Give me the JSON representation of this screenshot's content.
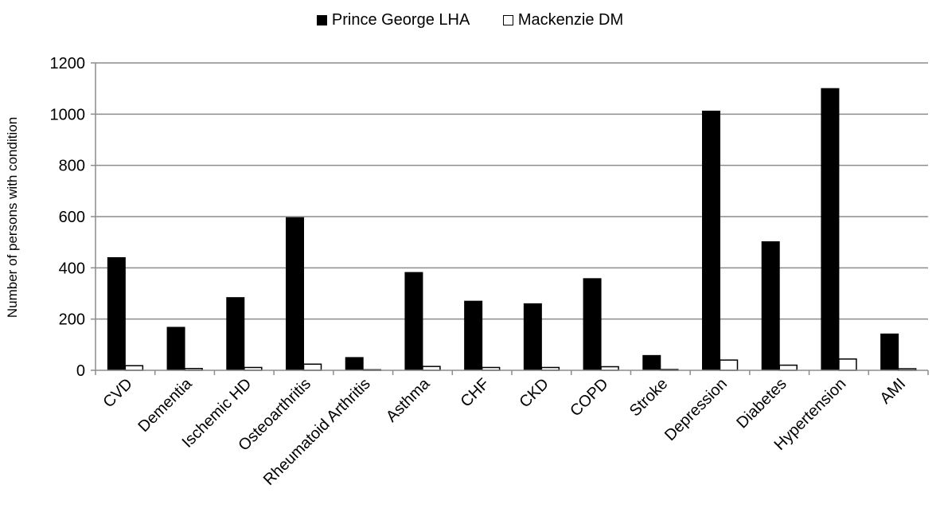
{
  "chart_data": {
    "type": "bar",
    "title": "",
    "xlabel": "",
    "ylabel": "Number of persons with condition",
    "ylim": [
      0,
      1200
    ],
    "yticks": [
      0,
      200,
      400,
      600,
      800,
      1000,
      1200
    ],
    "grid": true,
    "legend_position": "top",
    "categories": [
      "CVD",
      "Dementia",
      "Ischemic HD",
      "Osteoarthritis",
      "Rheumatoid Arthritis",
      "Asthma",
      "CHF",
      "CKD",
      "COPD",
      "Stroke",
      "Depression",
      "Diabetes",
      "Hypertension",
      "AMI"
    ],
    "series": [
      {
        "name": "Prince George LHA",
        "color": "#000000",
        "values": [
          440,
          168,
          284,
          596,
          50,
          382,
          270,
          260,
          358,
          58,
          1012,
          502,
          1100,
          142
        ]
      },
      {
        "name": "Mackenzie DM",
        "color": "#ffffff",
        "values": [
          18,
          7,
          11,
          24,
          2,
          15,
          11,
          11,
          14,
          3,
          40,
          20,
          44,
          6
        ]
      }
    ]
  }
}
